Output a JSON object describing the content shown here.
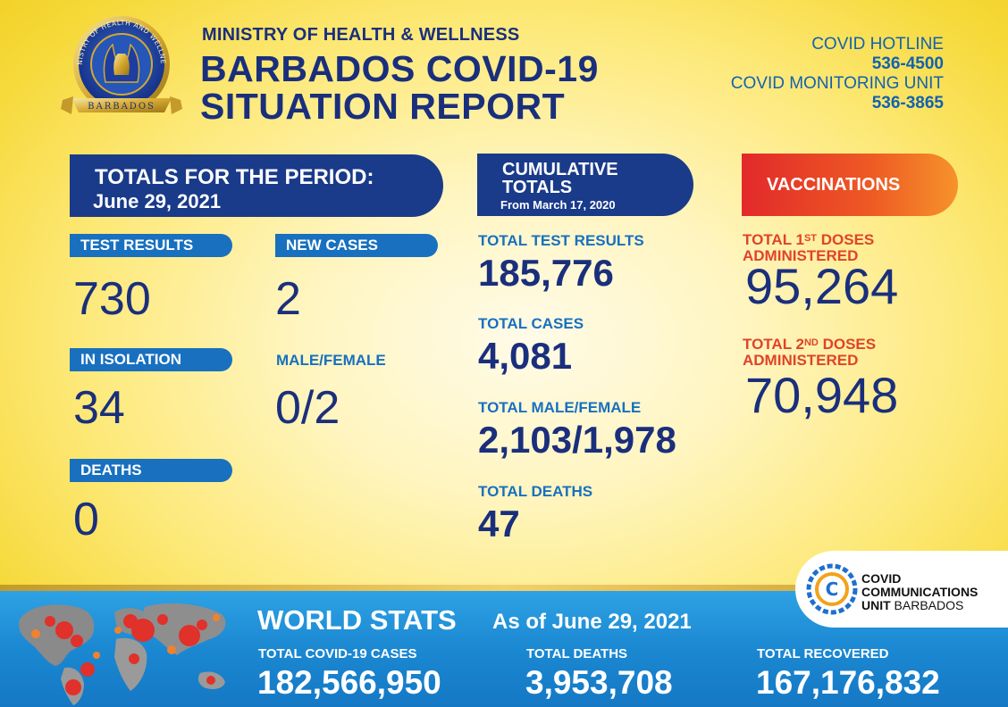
{
  "header": {
    "ministry": "MINISTRY OF HEALTH & WELLNESS",
    "title_line1": "BARBADOS COVID-19",
    "title_line2": "SITUATION REPORT",
    "seal_text_top": "MINISTRY OF HEALTH AND WELLNESS",
    "seal_text_bottom": "BARBADOS"
  },
  "contacts": {
    "hotline_label": "COVID HOTLINE",
    "hotline_number": "536-4500",
    "monitoring_label": "COVID MONITORING UNIT",
    "monitoring_number": "536-3865"
  },
  "period": {
    "title": "TOTALS FOR THE PERIOD:",
    "date": "June 29, 2021",
    "test_results_label": "TEST RESULTS",
    "test_results": "730",
    "new_cases_label": "NEW CASES",
    "new_cases": "2",
    "isolation_label": "IN ISOLATION",
    "isolation": "34",
    "male_female_label": "MALE/FEMALE",
    "male_female": "0/2",
    "deaths_label": "DEATHS",
    "deaths": "0"
  },
  "cumulative": {
    "title_line1": "CUMULATIVE",
    "title_line2": "TOTALS",
    "since": "From March 17, 2020",
    "test_results_label": "TOTAL TEST RESULTS",
    "test_results": "185,776",
    "cases_label": "TOTAL CASES",
    "cases": "4,081",
    "male_female_label": "TOTAL MALE/FEMALE",
    "male_female": "2,103/1,978",
    "deaths_label": "TOTAL DEATHS",
    "deaths": "47"
  },
  "vaccinations": {
    "title": "VACCINATIONS",
    "first_label_a": "TOTAL 1",
    "first_label_sup": "ST",
    "first_label_b": " DOSES",
    "first_label_c": "ADMINISTERED",
    "first_doses": "95,264",
    "second_label_a": "TOTAL 2",
    "second_label_sup": "ND",
    "second_label_b": " DOSES",
    "second_label_c": "ADMINISTERED",
    "second_doses": "70,948"
  },
  "ccu": {
    "line1": "COVID",
    "line2": "COMMUNICATIONS",
    "line3a": "UNIT",
    "line3b": " BARBADOS",
    "logo_letter": "C"
  },
  "world": {
    "title": "WORLD STATS",
    "date": "As of June 29, 2021",
    "cases_label": "TOTAL COVID-19 CASES",
    "cases": "182,566,950",
    "deaths_label": "TOTAL DEATHS",
    "deaths": "3,953,708",
    "recovered_label": "TOTAL RECOVERED",
    "recovered": "167,176,832"
  },
  "colors": {
    "navy": "#1a2f7c",
    "blue": "#1870bf",
    "red": "#e0432a",
    "yellow": "#f6d93a"
  },
  "icons": [
    "ministry-seal-icon",
    "world-map-icon",
    "virus-icon",
    "ccu-logo-icon"
  ]
}
